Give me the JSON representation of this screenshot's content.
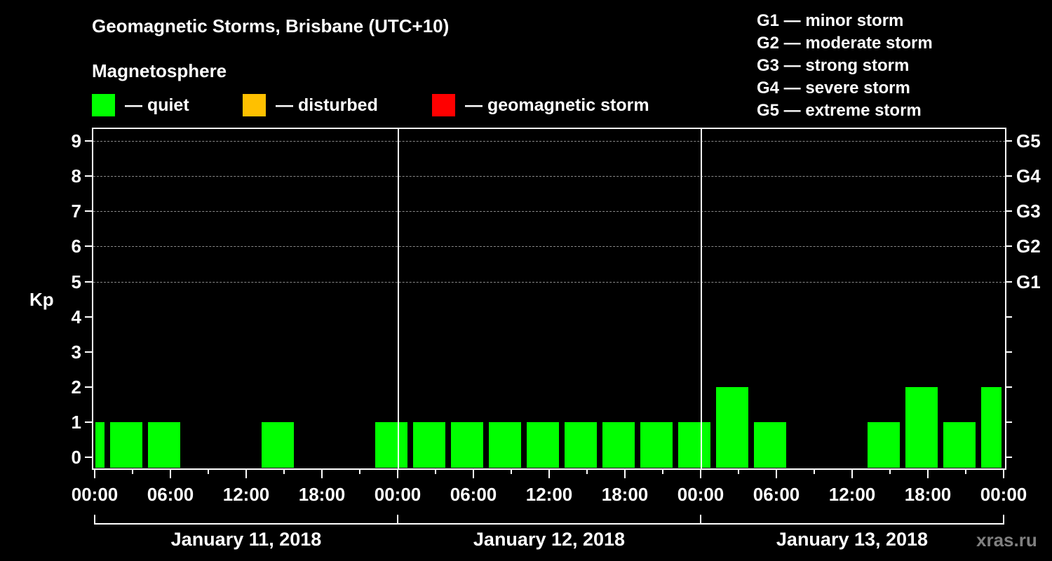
{
  "header": {
    "title": "Geomagnetic Storms, Brisbane (UTC+10)",
    "subtitle": "Magnetosphere"
  },
  "legend": [
    {
      "label": "— quiet",
      "color": "#00ff00"
    },
    {
      "label": "— disturbed",
      "color": "#ffc000"
    },
    {
      "label": "— geomagnetic storm",
      "color": "#ff0000"
    }
  ],
  "g_scale": [
    "G1 — minor storm",
    "G2 — moderate storm",
    "G3 — strong storm",
    "G4 — severe storm",
    "G5 — extreme storm"
  ],
  "axes": {
    "ylabel": "Kp",
    "yticks": [
      "0",
      "1",
      "2",
      "3",
      "4",
      "5",
      "6",
      "7",
      "8",
      "9"
    ],
    "right_labels": [
      {
        "kp": 5,
        "label": "G1"
      },
      {
        "kp": 6,
        "label": "G2"
      },
      {
        "kp": 7,
        "label": "G3"
      },
      {
        "kp": 8,
        "label": "G4"
      },
      {
        "kp": 9,
        "label": "G5"
      }
    ],
    "xticks": [
      "00:00",
      "06:00",
      "12:00",
      "18:00",
      "00:00",
      "06:00",
      "12:00",
      "18:00",
      "00:00",
      "06:00",
      "12:00",
      "18:00",
      "00:00"
    ],
    "days": [
      "January 11, 2018",
      "January 12, 2018",
      "January 13, 2018"
    ]
  },
  "credit": "xras.ru",
  "chart_data": {
    "type": "bar",
    "title": "Geomagnetic Storms, Brisbane (UTC+10)",
    "subtitle": "Magnetosphere",
    "xlabel": "",
    "ylabel": "Kp",
    "ylim": [
      0,
      9
    ],
    "grid": "dashed horizontal at Kp 5-9",
    "legend_position": "top",
    "legend": [
      "quiet",
      "disturbed",
      "geomagnetic storm"
    ],
    "secondary_axis": {
      "5": "G1",
      "6": "G2",
      "7": "G3",
      "8": "G4",
      "9": "G5"
    },
    "categories": [
      "Jan 10 22:30 (partial)",
      "Jan 11 01:30",
      "Jan 11 04:30",
      "Jan 11 07:30",
      "Jan 11 10:30",
      "Jan 11 13:30",
      "Jan 11 16:30",
      "Jan 11 19:30",
      "Jan 11 22:30",
      "Jan 12 01:30",
      "Jan 12 04:30",
      "Jan 12 07:30",
      "Jan 12 10:30",
      "Jan 12 13:30",
      "Jan 12 16:30",
      "Jan 12 19:30",
      "Jan 12 22:30",
      "Jan 13 01:30",
      "Jan 13 04:30",
      "Jan 13 07:30",
      "Jan 13 10:30",
      "Jan 13 13:30",
      "Jan 13 16:30",
      "Jan 13 19:30",
      "Jan 13 22:30 (partial)"
    ],
    "values": [
      1,
      1,
      1,
      0,
      0,
      1,
      0,
      0,
      1,
      1,
      1,
      1,
      1,
      1,
      1,
      1,
      1,
      2,
      1,
      0,
      0,
      1,
      2,
      1,
      2
    ],
    "colors": "all quiet (#00ff00)"
  }
}
